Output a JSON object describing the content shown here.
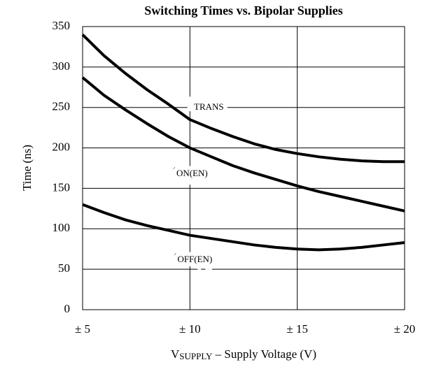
{
  "chart_data": {
    "type": "line",
    "title": "Switching Times vs. Bipolar Supplies",
    "x_label": {
      "symbol": "V",
      "subscript": "SUPPLY",
      "text": " – Supply Voltage (V)"
    },
    "y_label": "Time (ns)",
    "x": [
      5,
      6,
      7,
      8,
      9,
      10,
      11,
      12,
      13,
      14,
      15,
      16,
      17,
      18,
      19,
      20
    ],
    "series": [
      {
        "name": "tTRANS",
        "color": "#000000",
        "values": [
          340,
          314,
          292,
          272,
          254,
          235,
          224,
          214,
          205,
          198,
          193,
          189,
          186,
          184,
          183,
          183
        ]
      },
      {
        "name": "tON(EN)",
        "color": "#000000",
        "values": [
          287,
          265,
          247,
          230,
          214,
          200,
          189,
          178,
          169,
          161,
          153,
          146,
          140,
          134,
          128,
          122
        ]
      },
      {
        "name": "tOFF(EN)",
        "color": "#000000",
        "values": [
          130,
          120,
          111,
          104,
          98,
          92,
          88,
          84,
          80,
          77,
          75,
          74,
          75,
          77,
          80,
          83
        ]
      }
    ],
    "xlim": [
      5,
      20
    ],
    "xticks": [
      {
        "value": 5,
        "label": "± 5"
      },
      {
        "value": 10,
        "label": "± 10"
      },
      {
        "value": 15,
        "label": "± 15"
      },
      {
        "value": 20,
        "label": "± 20"
      }
    ],
    "ylim": [
      0,
      350
    ],
    "yticks": [
      0,
      50,
      100,
      150,
      200,
      250,
      300,
      350
    ],
    "grid": true
  }
}
